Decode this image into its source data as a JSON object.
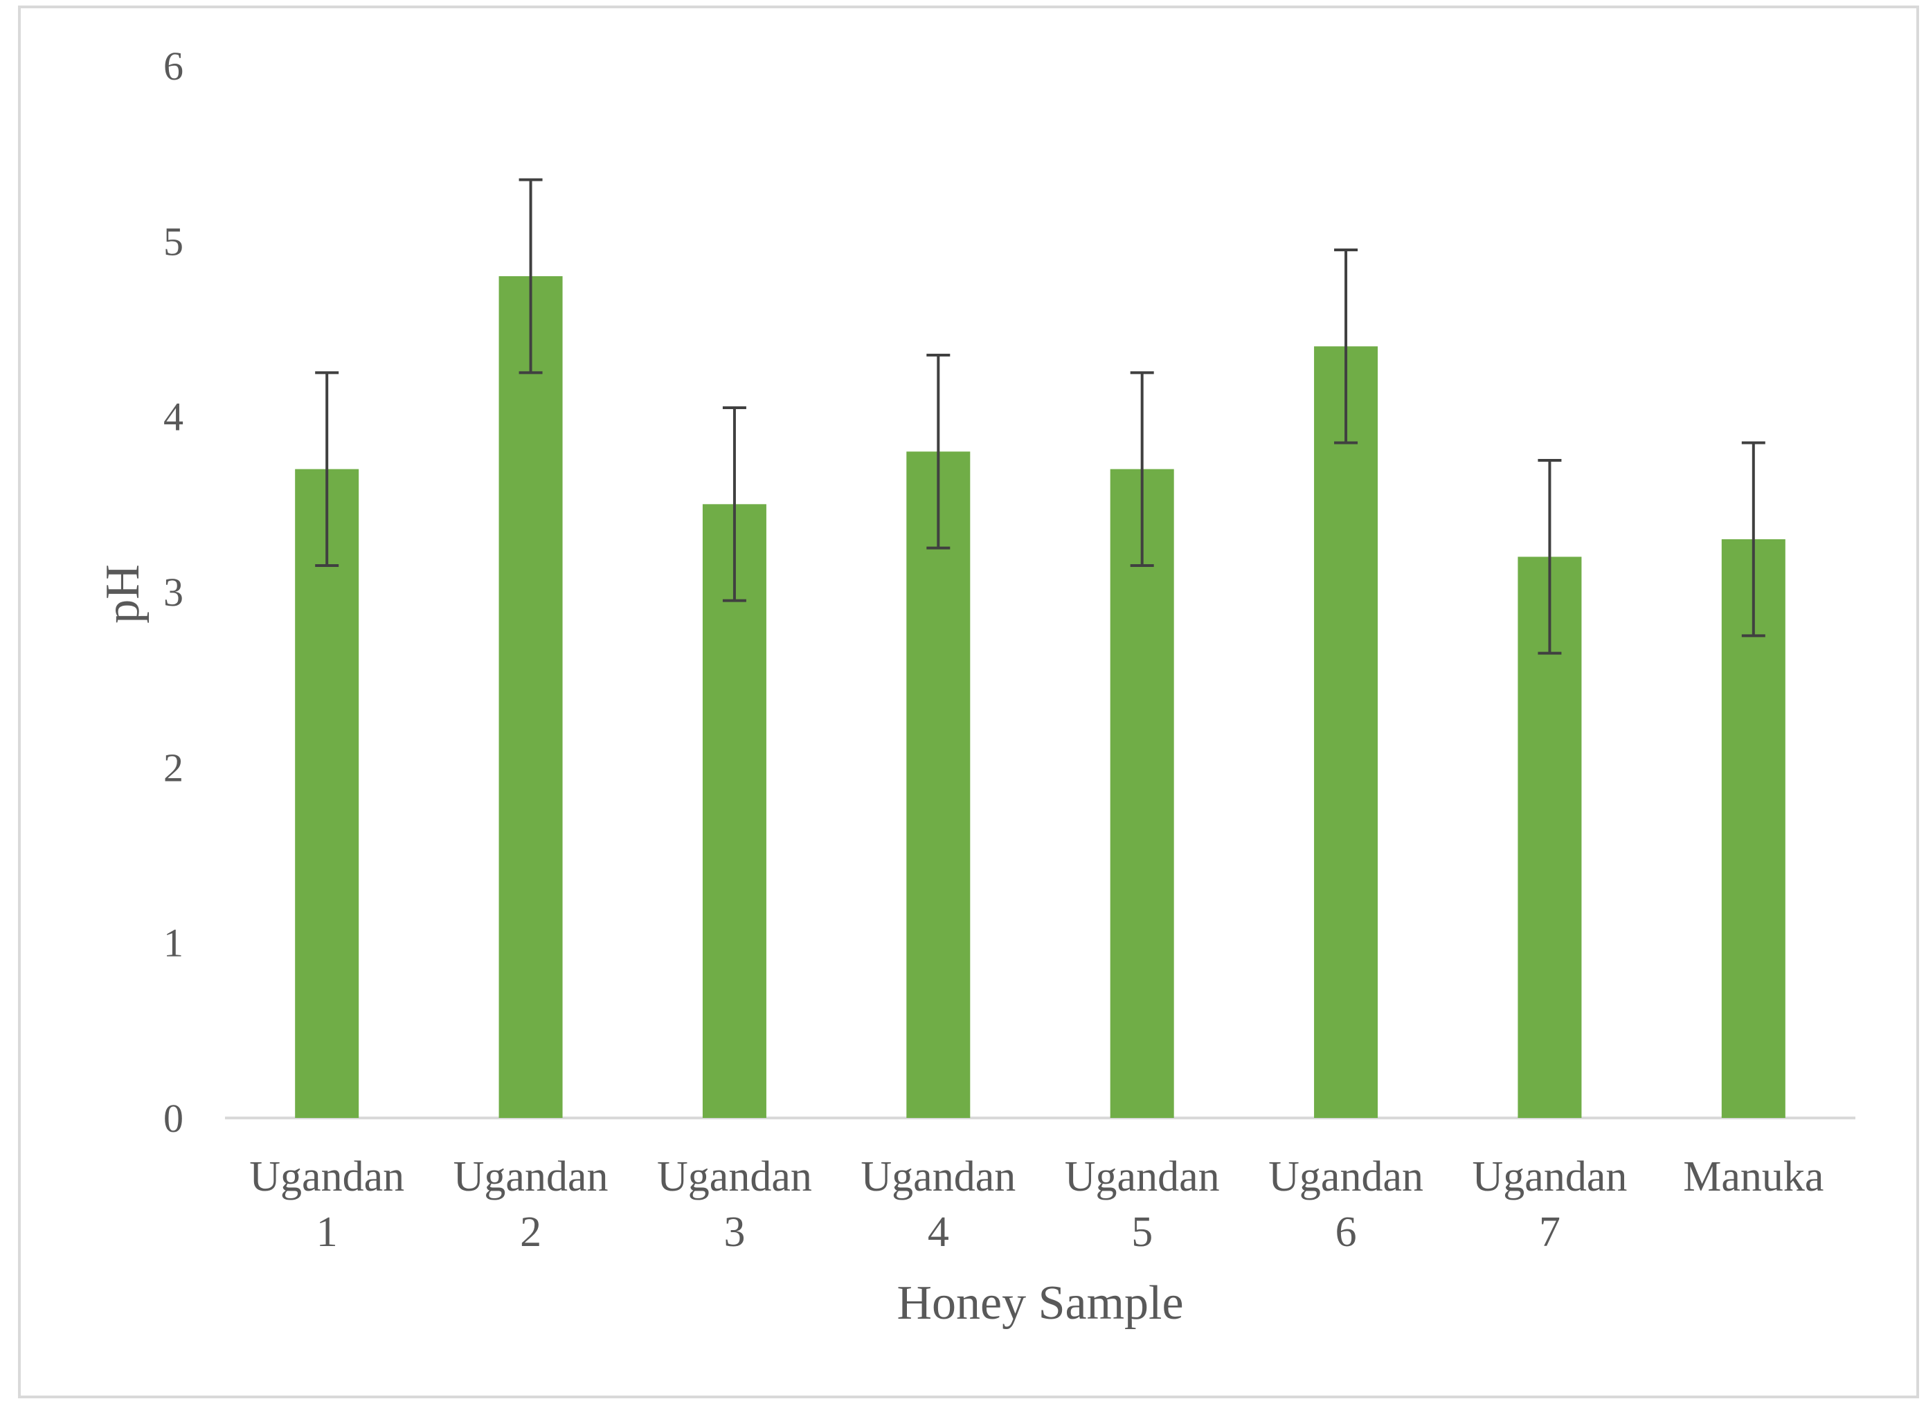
{
  "chart_data": {
    "type": "bar",
    "title": "",
    "xlabel": "Honey Sample",
    "ylabel": "pH",
    "categories": [
      [
        "Ugandan",
        "1"
      ],
      [
        "Ugandan",
        "2"
      ],
      [
        "Ugandan",
        "3"
      ],
      [
        "Ugandan",
        "4"
      ],
      [
        "Ugandan",
        "5"
      ],
      [
        "Ugandan",
        "6"
      ],
      [
        "Ugandan",
        "7"
      ],
      [
        "Manuka"
      ]
    ],
    "values": [
      3.7,
      4.8,
      3.5,
      3.8,
      3.7,
      4.4,
      3.2,
      3.3
    ],
    "error": [
      0.55,
      0.55,
      0.55,
      0.55,
      0.55,
      0.55,
      0.55,
      0.55
    ],
    "ylim": [
      0,
      6
    ],
    "yticks": [
      "0",
      "1",
      "2",
      "3",
      "4",
      "5",
      "6"
    ],
    "grid": false,
    "legend": "none",
    "colors": {
      "bar": "#70AD47",
      "error_bar": "#404040",
      "axis": "#D9D9D9",
      "frame": "#D9D9D9",
      "text": "#595959"
    }
  }
}
